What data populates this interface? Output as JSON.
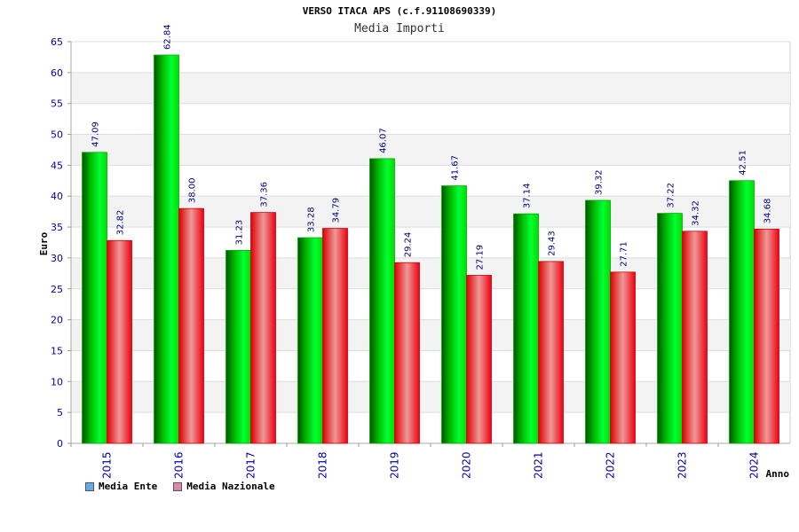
{
  "header": {
    "title": "VERSO ITACA APS (c.f.91108690339)",
    "subtitle": "Media Importi"
  },
  "chart_data": {
    "type": "bar",
    "title": "VERSO ITACA APS (c.f.91108690339)",
    "subtitle": "Media Importi",
    "xlabel": "Anno",
    "ylabel": "Euro",
    "ylim": [
      0,
      65
    ],
    "yticks": [
      "0",
      "5",
      "10",
      "15",
      "20",
      "25",
      "30",
      "35",
      "40",
      "45",
      "50",
      "55",
      "60",
      "65"
    ],
    "categories": [
      "2015",
      "2016",
      "2017",
      "2018",
      "2019",
      "2020",
      "2021",
      "2022",
      "2023",
      "2024"
    ],
    "series": [
      {
        "name": "Media Ente",
        "values": [
          47.09,
          62.84,
          31.23,
          33.28,
          46.07,
          41.67,
          37.14,
          39.32,
          37.22,
          42.51
        ],
        "labels": [
          "47.09",
          "62.84",
          "31.23",
          "33.28",
          "46.07",
          "41.67",
          "37.14",
          "39.32",
          "37.22",
          "42.51"
        ],
        "color": "#00cc00"
      },
      {
        "name": "Media Nazionale",
        "values": [
          32.82,
          38.0,
          37.36,
          34.79,
          29.24,
          27.19,
          29.43,
          27.71,
          34.32,
          34.68
        ],
        "labels": [
          "32.82",
          "38.00",
          "37.36",
          "34.79",
          "29.24",
          "27.19",
          "29.43",
          "27.71",
          "34.32",
          "34.68"
        ],
        "color": "#ff2a2a"
      }
    ],
    "legend": [
      {
        "label": "Media Ente",
        "color": "#66aaee"
      },
      {
        "label": "Media Nazionale",
        "color": "#dd88aa"
      }
    ],
    "legend_position": "bottom-left",
    "grid": true
  }
}
